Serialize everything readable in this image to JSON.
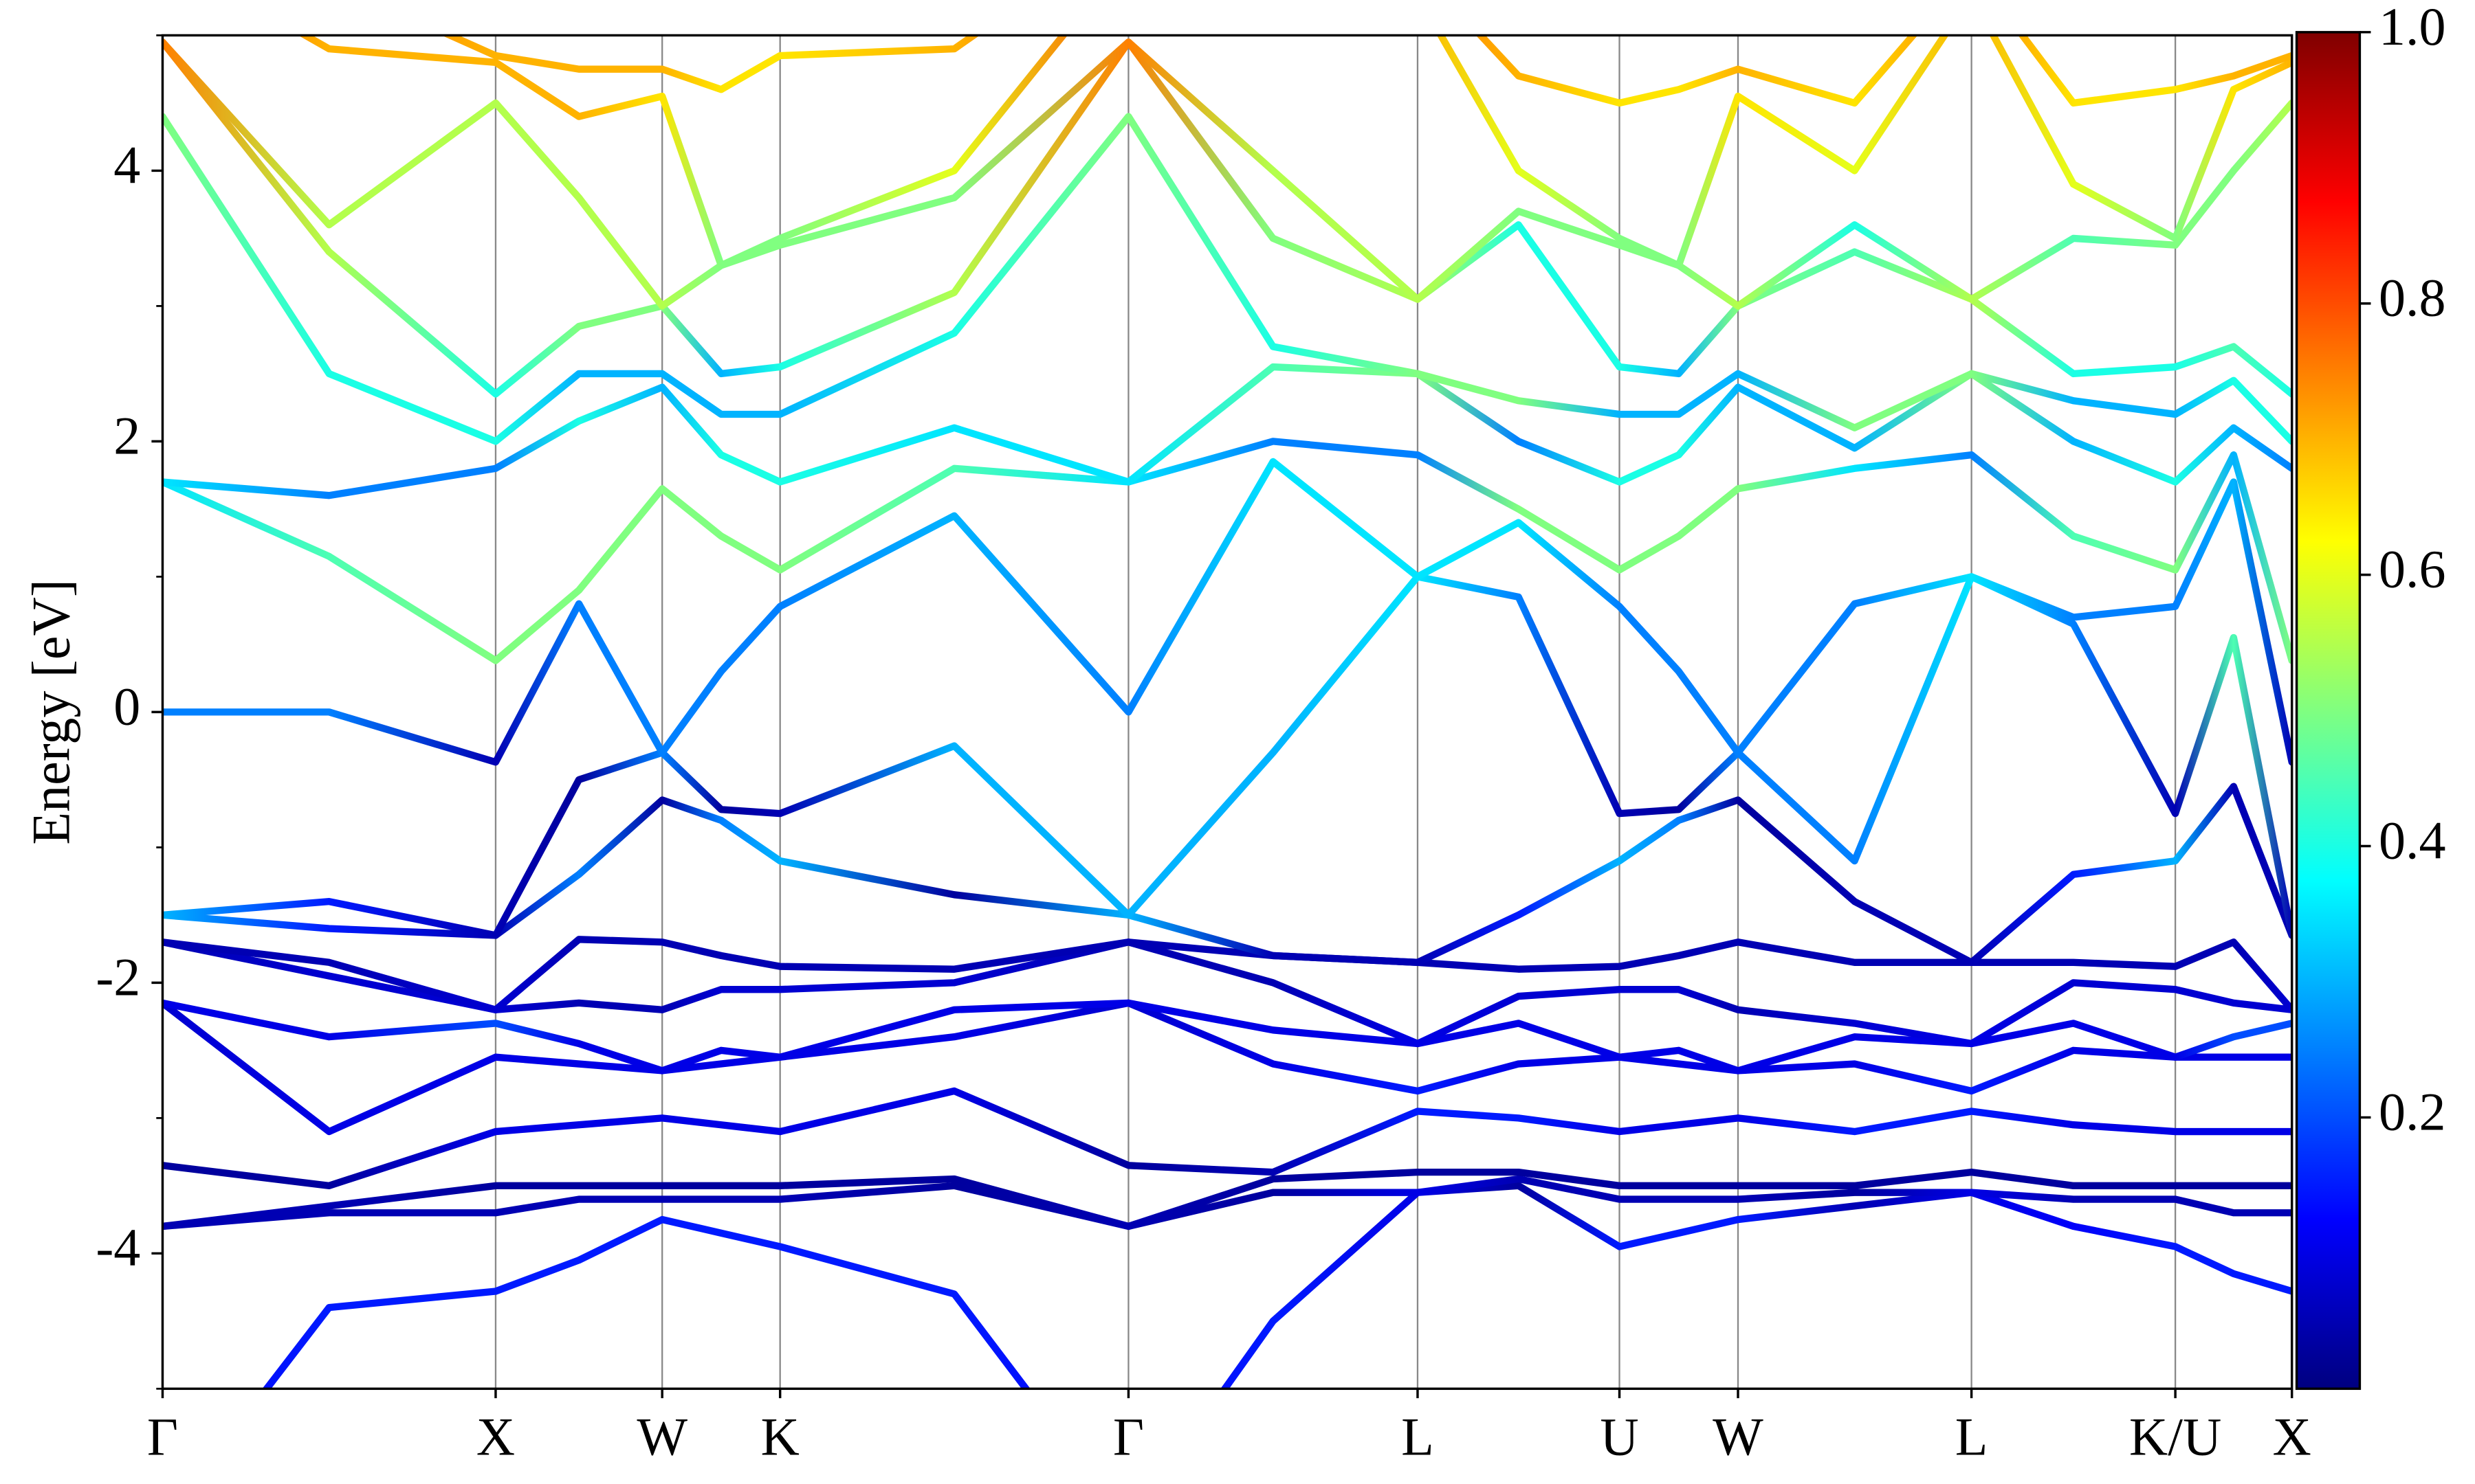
{
  "chart_data": {
    "type": "line",
    "ylabel": "Energy [eV]",
    "x": [
      0,
      0.5,
      1.0,
      1.25,
      1.5,
      1.677,
      1.854,
      2.377,
      2.9,
      3.334,
      3.768,
      4.071,
      4.374,
      4.552,
      4.73,
      5.08,
      5.431,
      5.737,
      6.043,
      6.218,
      6.393
    ],
    "xlim": [
      0,
      6.393
    ],
    "xticks": [
      {
        "value": 0,
        "label": "Γ"
      },
      {
        "value": 1.0,
        "label": "X"
      },
      {
        "value": 1.5,
        "label": "W"
      },
      {
        "value": 1.854,
        "label": "K"
      },
      {
        "value": 2.9,
        "label": "Γ"
      },
      {
        "value": 3.768,
        "label": "L"
      },
      {
        "value": 4.374,
        "label": "U"
      },
      {
        "value": 4.73,
        "label": "W"
      },
      {
        "value": 5.431,
        "label": "L"
      },
      {
        "value": 6.043,
        "label": "K/U"
      },
      {
        "value": 6.393,
        "label": "X"
      }
    ],
    "xgrid": true,
    "ylim": [
      -5,
      5
    ],
    "yticks": [
      -4,
      -2,
      0,
      2,
      4
    ],
    "yminorticks": [
      -5,
      -3,
      -1,
      1,
      3,
      5
    ],
    "colorbar": {
      "colormap": "jet",
      "clim": [
        0,
        1
      ],
      "ticks": [
        0.2,
        0.4,
        0.6,
        0.8,
        {
          "value": 1,
          "label": "1.0"
        }
      ]
    },
    "series": [
      {
        "values": [
          -6.0,
          -4.4,
          -4.28,
          -4.05,
          -3.75,
          -3.85,
          -3.95,
          -4.3,
          -6.0,
          -4.5,
          -3.55,
          -3.5,
          -3.95,
          -3.85,
          -3.75,
          -3.65,
          -3.55,
          -3.8,
          -3.95,
          -4.15,
          -4.28
        ],
        "weights": [
          0.12,
          0.15,
          0.15,
          0.15,
          0.15,
          0.15,
          0.15,
          0.15,
          0.12,
          0.15,
          0.1,
          0.03,
          0.15,
          0.15,
          0.15,
          0.05,
          0.1,
          0.12,
          0.15,
          0.15,
          0.15
        ]
      },
      {
        "values": [
          -3.8,
          -3.7,
          -3.7,
          -3.6,
          -3.6,
          -3.6,
          -3.6,
          -3.5,
          -3.8,
          -3.55,
          -3.55,
          -3.45,
          -3.6,
          -3.6,
          -3.6,
          -3.55,
          -3.55,
          -3.6,
          -3.6,
          -3.7,
          -3.7
        ],
        "weights": [
          0.05,
          0.05,
          0.05,
          0.05,
          0.05,
          0.05,
          0.05,
          0.03,
          0.05,
          0.03,
          0.1,
          0.05,
          0.05,
          0.05,
          0.05,
          0.03,
          0.1,
          0.05,
          0.05,
          0.05,
          0.05
        ]
      },
      {
        "values": [
          -3.8,
          -3.65,
          -3.5,
          -3.5,
          -3.5,
          -3.5,
          -3.5,
          -3.45,
          -3.8,
          -3.45,
          -3.4,
          -3.4,
          -3.5,
          -3.5,
          -3.5,
          -3.5,
          -3.4,
          -3.5,
          -3.5,
          -3.5,
          -3.5
        ],
        "weights": [
          0.05,
          0.05,
          0.03,
          0.03,
          0.03,
          0.03,
          0.03,
          0.03,
          0.05,
          0.03,
          0.03,
          0.03,
          0.03,
          0.03,
          0.03,
          0.03,
          0.03,
          0.03,
          0.03,
          0.03,
          0.03
        ]
      },
      {
        "values": [
          -3.35,
          -3.5,
          -3.1,
          -3.05,
          -3.0,
          -3.05,
          -3.1,
          -2.8,
          -3.35,
          -3.4,
          -2.95,
          -3.0,
          -3.1,
          -3.05,
          -3.0,
          -3.1,
          -2.95,
          -3.05,
          -3.1,
          -3.1,
          -3.1
        ],
        "weights": [
          0.03,
          0.03,
          0.1,
          0.1,
          0.1,
          0.1,
          0.1,
          0.1,
          0.03,
          0.05,
          0.15,
          0.15,
          0.1,
          0.1,
          0.1,
          0.15,
          0.15,
          0.1,
          0.1,
          0.1,
          0.1
        ]
      },
      {
        "values": [
          -2.15,
          -3.1,
          -2.55,
          -2.6,
          -2.65,
          -2.6,
          -2.55,
          -2.4,
          -2.15,
          -2.6,
          -2.8,
          -2.6,
          -2.55,
          -2.6,
          -2.65,
          -2.6,
          -2.8,
          -2.5,
          -2.55,
          -2.55,
          -2.55
        ],
        "weights": [
          0.08,
          0.1,
          0.1,
          0.1,
          0.1,
          0.1,
          0.1,
          0.1,
          0.08,
          0.1,
          0.15,
          0.1,
          0.1,
          0.1,
          0.1,
          0.1,
          0.15,
          0.1,
          0.1,
          0.1,
          0.1
        ]
      },
      {
        "values": [
          -2.15,
          -2.4,
          -2.3,
          -2.45,
          -2.65,
          -2.5,
          -2.55,
          -2.2,
          -2.15,
          -2.35,
          -2.45,
          -2.3,
          -2.55,
          -2.5,
          -2.65,
          -2.4,
          -2.45,
          -2.3,
          -2.55,
          -2.4,
          -2.3
        ],
        "weights": [
          0.1,
          0.1,
          0.2,
          0.1,
          0.1,
          0.1,
          0.1,
          0.1,
          0.1,
          0.1,
          0.1,
          0.1,
          0.1,
          0.1,
          0.1,
          0.1,
          0.1,
          0.1,
          0.1,
          0.2,
          0.2
        ]
      },
      {
        "values": [
          -1.7,
          -1.95,
          -2.2,
          -2.15,
          -2.2,
          -2.05,
          -2.05,
          -2.0,
          -1.7,
          -2.0,
          -2.45,
          -2.1,
          -2.05,
          -2.05,
          -2.2,
          -2.3,
          -2.45,
          -2.0,
          -2.05,
          -2.15,
          -2.2
        ],
        "weights": [
          0.05,
          0.08,
          0.08,
          0.05,
          0.05,
          0.08,
          0.08,
          0.08,
          0.05,
          0.05,
          0.1,
          0.08,
          0.08,
          0.08,
          0.05,
          0.08,
          0.1,
          0.08,
          0.08,
          0.08,
          0.08
        ]
      },
      {
        "values": [
          -1.7,
          -1.85,
          -2.2,
          -1.68,
          -1.7,
          -1.8,
          -1.88,
          -1.9,
          -1.7,
          -1.8,
          -1.85,
          -1.9,
          -1.88,
          -1.8,
          -1.7,
          -1.85,
          -1.85,
          -1.85,
          -1.88,
          -1.7,
          -2.2
        ],
        "weights": [
          0.05,
          0.05,
          0.08,
          0.05,
          0.05,
          0.05,
          0.05,
          0.05,
          0.05,
          0.05,
          0.05,
          0.05,
          0.05,
          0.05,
          0.05,
          0.05,
          0.05,
          0.05,
          0.05,
          0.05,
          0.08
        ]
      },
      {
        "values": [
          -1.5,
          -1.6,
          -1.65,
          -1.2,
          -0.65,
          -0.8,
          -1.1,
          -1.35,
          -1.5,
          -1.8,
          -1.85,
          -1.5,
          -1.1,
          -0.8,
          -0.65,
          -1.4,
          -1.85,
          -1.2,
          -1.1,
          -0.55,
          -1.65
        ],
        "weights": [
          0.3,
          0.15,
          0.05,
          0.25,
          0.03,
          0.25,
          0.3,
          0.03,
          0.3,
          0.05,
          0.05,
          0.15,
          0.3,
          0.25,
          0.03,
          0.05,
          0.05,
          0.15,
          0.3,
          0.05,
          0.05
        ]
      },
      {
        "values": [
          -1.5,
          -1.4,
          -1.65,
          -0.5,
          -0.3,
          -0.72,
          -0.75,
          -0.25,
          -1.5,
          -0.3,
          1.0,
          0.85,
          -0.75,
          -0.72,
          -0.3,
          -1.1,
          1.0,
          0.65,
          -0.75,
          0.55,
          -1.65
        ],
        "weights": [
          0.3,
          0.15,
          0.05,
          0.03,
          0.25,
          0.03,
          0.05,
          0.3,
          0.3,
          0.3,
          0.35,
          0.25,
          0.05,
          0.03,
          0.25,
          0.25,
          0.35,
          0.25,
          0.05,
          0.45,
          0.05
        ]
      },
      {
        "values": [
          0.0,
          0.0,
          -0.37,
          0.8,
          -0.3,
          0.3,
          0.78,
          1.45,
          0.0,
          1.85,
          1.0,
          1.4,
          0.78,
          0.3,
          -0.3,
          0.8,
          1.0,
          0.7,
          0.78,
          1.7,
          -0.37
        ],
        "weights": [
          0.25,
          0.25,
          0.05,
          0.25,
          0.25,
          0.25,
          0.25,
          0.3,
          0.25,
          0.35,
          0.35,
          0.35,
          0.25,
          0.25,
          0.25,
          0.25,
          0.35,
          0.25,
          0.25,
          0.3,
          0.05
        ]
      },
      {
        "values": [
          1.7,
          1.15,
          0.38,
          0.9,
          1.65,
          1.3,
          1.05,
          1.8,
          1.7,
          2.0,
          1.9,
          1.5,
          1.05,
          1.3,
          1.65,
          1.8,
          1.9,
          1.3,
          1.05,
          1.9,
          0.38
        ],
        "weights": [
          0.35,
          0.45,
          0.5,
          0.5,
          0.5,
          0.5,
          0.5,
          0.45,
          0.35,
          0.25,
          0.25,
          0.5,
          0.5,
          0.5,
          0.5,
          0.35,
          0.25,
          0.45,
          0.5,
          0.3,
          0.5
        ]
      },
      {
        "values": [
          1.7,
          1.6,
          1.8,
          2.15,
          2.4,
          1.9,
          1.7,
          2.1,
          1.7,
          2.55,
          2.5,
          2.0,
          1.7,
          1.9,
          2.4,
          1.95,
          2.5,
          2.0,
          1.7,
          2.1,
          1.8
        ],
        "weights": [
          0.35,
          0.25,
          0.25,
          0.4,
          0.3,
          0.4,
          0.4,
          0.35,
          0.35,
          0.45,
          0.5,
          0.25,
          0.4,
          0.4,
          0.3,
          0.3,
          0.5,
          0.3,
          0.4,
          0.3,
          0.25
        ]
      },
      {
        "values": [
          4.4,
          2.5,
          2.0,
          2.5,
          2.5,
          2.2,
          2.2,
          2.8,
          4.4,
          2.7,
          2.5,
          2.3,
          2.2,
          2.2,
          2.5,
          2.1,
          2.5,
          2.3,
          2.2,
          2.45,
          2.0
        ],
        "weights": [
          0.5,
          0.4,
          0.4,
          0.3,
          0.3,
          0.3,
          0.3,
          0.4,
          0.5,
          0.4,
          0.5,
          0.5,
          0.3,
          0.3,
          0.3,
          0.5,
          0.5,
          0.3,
          0.3,
          0.4,
          0.4
        ]
      },
      {
        "values": [
          4.95,
          3.4,
          2.35,
          2.85,
          3.0,
          2.5,
          2.55,
          3.1,
          4.95,
          3.5,
          3.05,
          3.6,
          2.55,
          2.5,
          3.0,
          3.4,
          3.05,
          2.5,
          2.55,
          2.7,
          2.35
        ],
        "weights": [
          0.75,
          0.55,
          0.4,
          0.5,
          0.5,
          0.3,
          0.4,
          0.55,
          0.75,
          0.5,
          0.55,
          0.4,
          0.4,
          0.3,
          0.5,
          0.45,
          0.55,
          0.4,
          0.4,
          0.45,
          0.4
        ]
      },
      {
        "values": [
          4.95,
          3.6,
          4.5,
          3.8,
          3.0,
          3.3,
          3.45,
          3.8,
          4.95,
          4.0,
          3.05,
          3.7,
          3.45,
          3.3,
          3.0,
          3.6,
          3.05,
          3.5,
          3.45,
          4.0,
          4.5
        ],
        "weights": [
          0.75,
          0.55,
          0.55,
          0.55,
          0.55,
          0.5,
          0.5,
          0.5,
          0.75,
          0.55,
          0.55,
          0.5,
          0.5,
          0.5,
          0.55,
          0.4,
          0.55,
          0.45,
          0.5,
          0.5,
          0.55
        ]
      },
      {
        "values": [
          5.6,
          4.9,
          4.8,
          4.4,
          4.55,
          3.3,
          3.5,
          4.0,
          5.6,
          5.3,
          5.3,
          4.0,
          3.5,
          3.3,
          4.55,
          4.0,
          5.3,
          3.9,
          3.5,
          4.6,
          4.8
        ],
        "weights": [
          0.8,
          0.7,
          0.7,
          0.7,
          0.65,
          0.5,
          0.5,
          0.6,
          0.8,
          0.7,
          0.7,
          0.6,
          0.5,
          0.5,
          0.65,
          0.6,
          0.7,
          0.6,
          0.5,
          0.65,
          0.7
        ]
      },
      {
        "values": [
          5.8,
          5.4,
          4.85,
          4.75,
          4.75,
          4.6,
          4.85,
          4.9,
          5.8,
          5.6,
          5.5,
          4.7,
          4.5,
          4.6,
          4.75,
          4.5,
          5.5,
          4.5,
          4.6,
          4.7,
          4.85
        ],
        "weights": [
          0.8,
          0.75,
          0.7,
          0.7,
          0.7,
          0.65,
          0.65,
          0.7,
          0.8,
          0.75,
          0.75,
          0.7,
          0.65,
          0.65,
          0.7,
          0.65,
          0.75,
          0.65,
          0.65,
          0.7,
          0.7
        ]
      }
    ]
  }
}
